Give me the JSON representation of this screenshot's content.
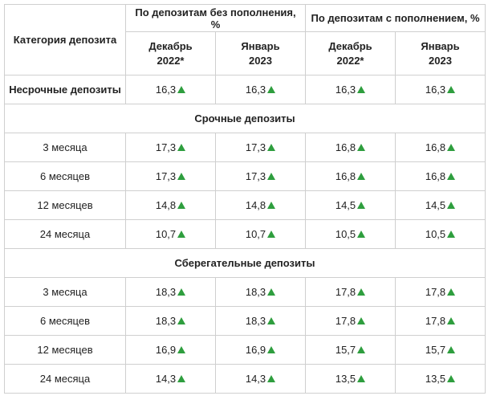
{
  "headers": {
    "category": "Категория депозита",
    "group_no_replenish": "По депозитам без пополнения, %",
    "group_replenish": "По депозитам с пополнением, %",
    "col_dec_line1": "Декабрь",
    "col_dec_line2": "2022*",
    "col_jan_line1": "Январь",
    "col_jan_line2": "2023"
  },
  "indicator": "up-arrow-icon",
  "indicator_color": "#2e9e3e",
  "demand": {
    "label": "Несрочные депозиты",
    "values": [
      "16,3",
      "16,3",
      "16,3",
      "16,3"
    ]
  },
  "term_section": {
    "title": "Срочные депозиты",
    "rows": [
      {
        "label": "3 месяца",
        "values": [
          "17,3",
          "17,3",
          "16,8",
          "16,8"
        ]
      },
      {
        "label": "6 месяцев",
        "values": [
          "17,3",
          "17,3",
          "16,8",
          "16,8"
        ]
      },
      {
        "label": "12 месяцев",
        "values": [
          "14,8",
          "14,8",
          "14,5",
          "14,5"
        ]
      },
      {
        "label": "24 месяца",
        "values": [
          "10,7",
          "10,7",
          "10,5",
          "10,5"
        ]
      }
    ]
  },
  "savings_section": {
    "title": "Сберегательные депозиты",
    "rows": [
      {
        "label": "3 месяца",
        "values": [
          "18,3",
          "18,3",
          "17,8",
          "17,8"
        ]
      },
      {
        "label": "6 месяцев",
        "values": [
          "18,3",
          "18,3",
          "17,8",
          "17,8"
        ]
      },
      {
        "label": "12 месяцев",
        "values": [
          "16,9",
          "16,9",
          "15,7",
          "15,7"
        ]
      },
      {
        "label": "24 месяца",
        "values": [
          "14,3",
          "14,3",
          "13,5",
          "13,5"
        ]
      }
    ]
  }
}
